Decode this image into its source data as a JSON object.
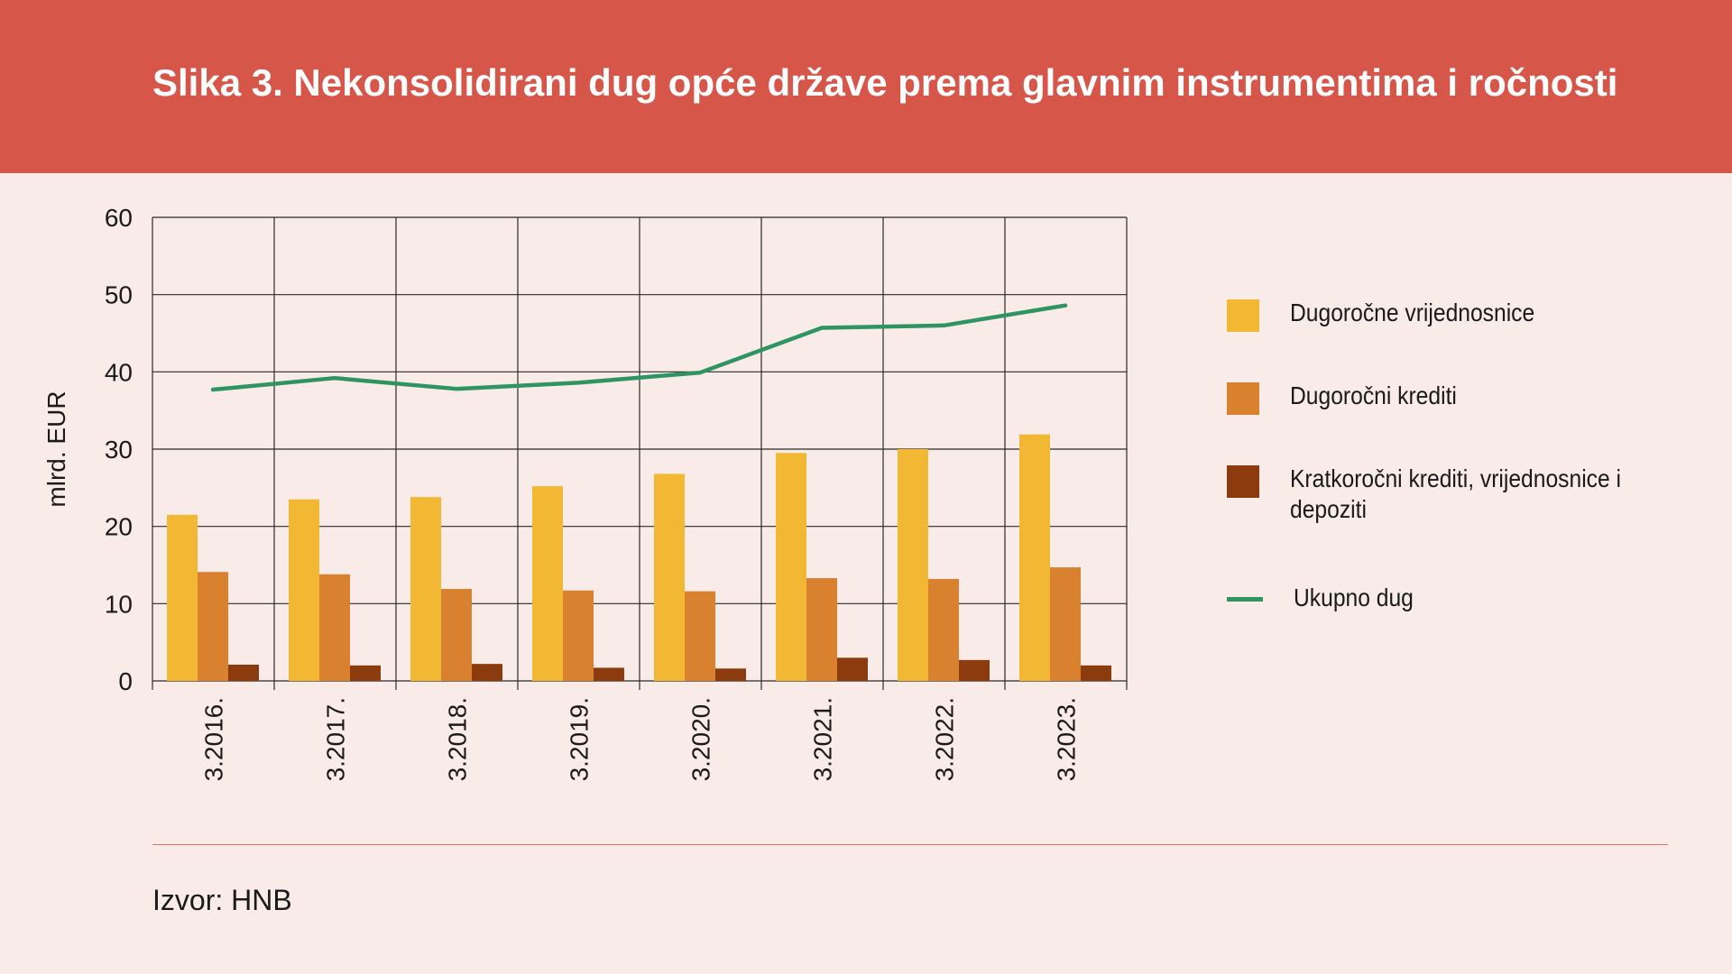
{
  "header": {
    "title": "Slika 3. Nekonsolidirani dug opće države prema glavnim instrumentima i ročnosti"
  },
  "colors": {
    "header_bg": "#d6564a",
    "page_bg": "#f9ebe7",
    "dugorocne_vrijednosnice": "#f2b833",
    "dugorocni_krediti": "#d9812f",
    "kratkorocni": "#8b3b0d",
    "ukupno_dug": "#2e9461"
  },
  "chart_data": {
    "type": "bar",
    "ylabel": "mlrd. EUR",
    "xlabel": "",
    "ylim": [
      0,
      60
    ],
    "yticks": [
      0,
      10,
      20,
      30,
      40,
      50,
      60
    ],
    "grid": true,
    "legend_position": "right",
    "categories": [
      "3.2016.",
      "3.2017.",
      "3.2018.",
      "3.2019.",
      "3.2020.",
      "3.2021.",
      "3.2022.",
      "3.2023."
    ],
    "series": [
      {
        "name": "Dugoročne vrijednosnice",
        "type": "bar",
        "color": "#f2b833",
        "values": [
          21.5,
          23.5,
          23.8,
          25.2,
          26.8,
          29.5,
          30.0,
          31.9
        ]
      },
      {
        "name": "Dugoročni krediti",
        "type": "bar",
        "color": "#d9812f",
        "values": [
          14.1,
          13.8,
          11.9,
          11.7,
          11.6,
          13.3,
          13.2,
          14.7
        ]
      },
      {
        "name": "Kratkoročni krediti, vrijednosnice i depoziti",
        "type": "bar",
        "color": "#8b3b0d",
        "values": [
          2.1,
          2.0,
          2.2,
          1.7,
          1.6,
          3.0,
          2.7,
          2.0
        ]
      },
      {
        "name": "Ukupno dug",
        "type": "line",
        "color": "#2e9461",
        "values": [
          37.7,
          39.2,
          37.8,
          38.6,
          39.9,
          45.7,
          46.0,
          48.6
        ]
      }
    ]
  },
  "source": {
    "text": "Izvor: HNB"
  }
}
